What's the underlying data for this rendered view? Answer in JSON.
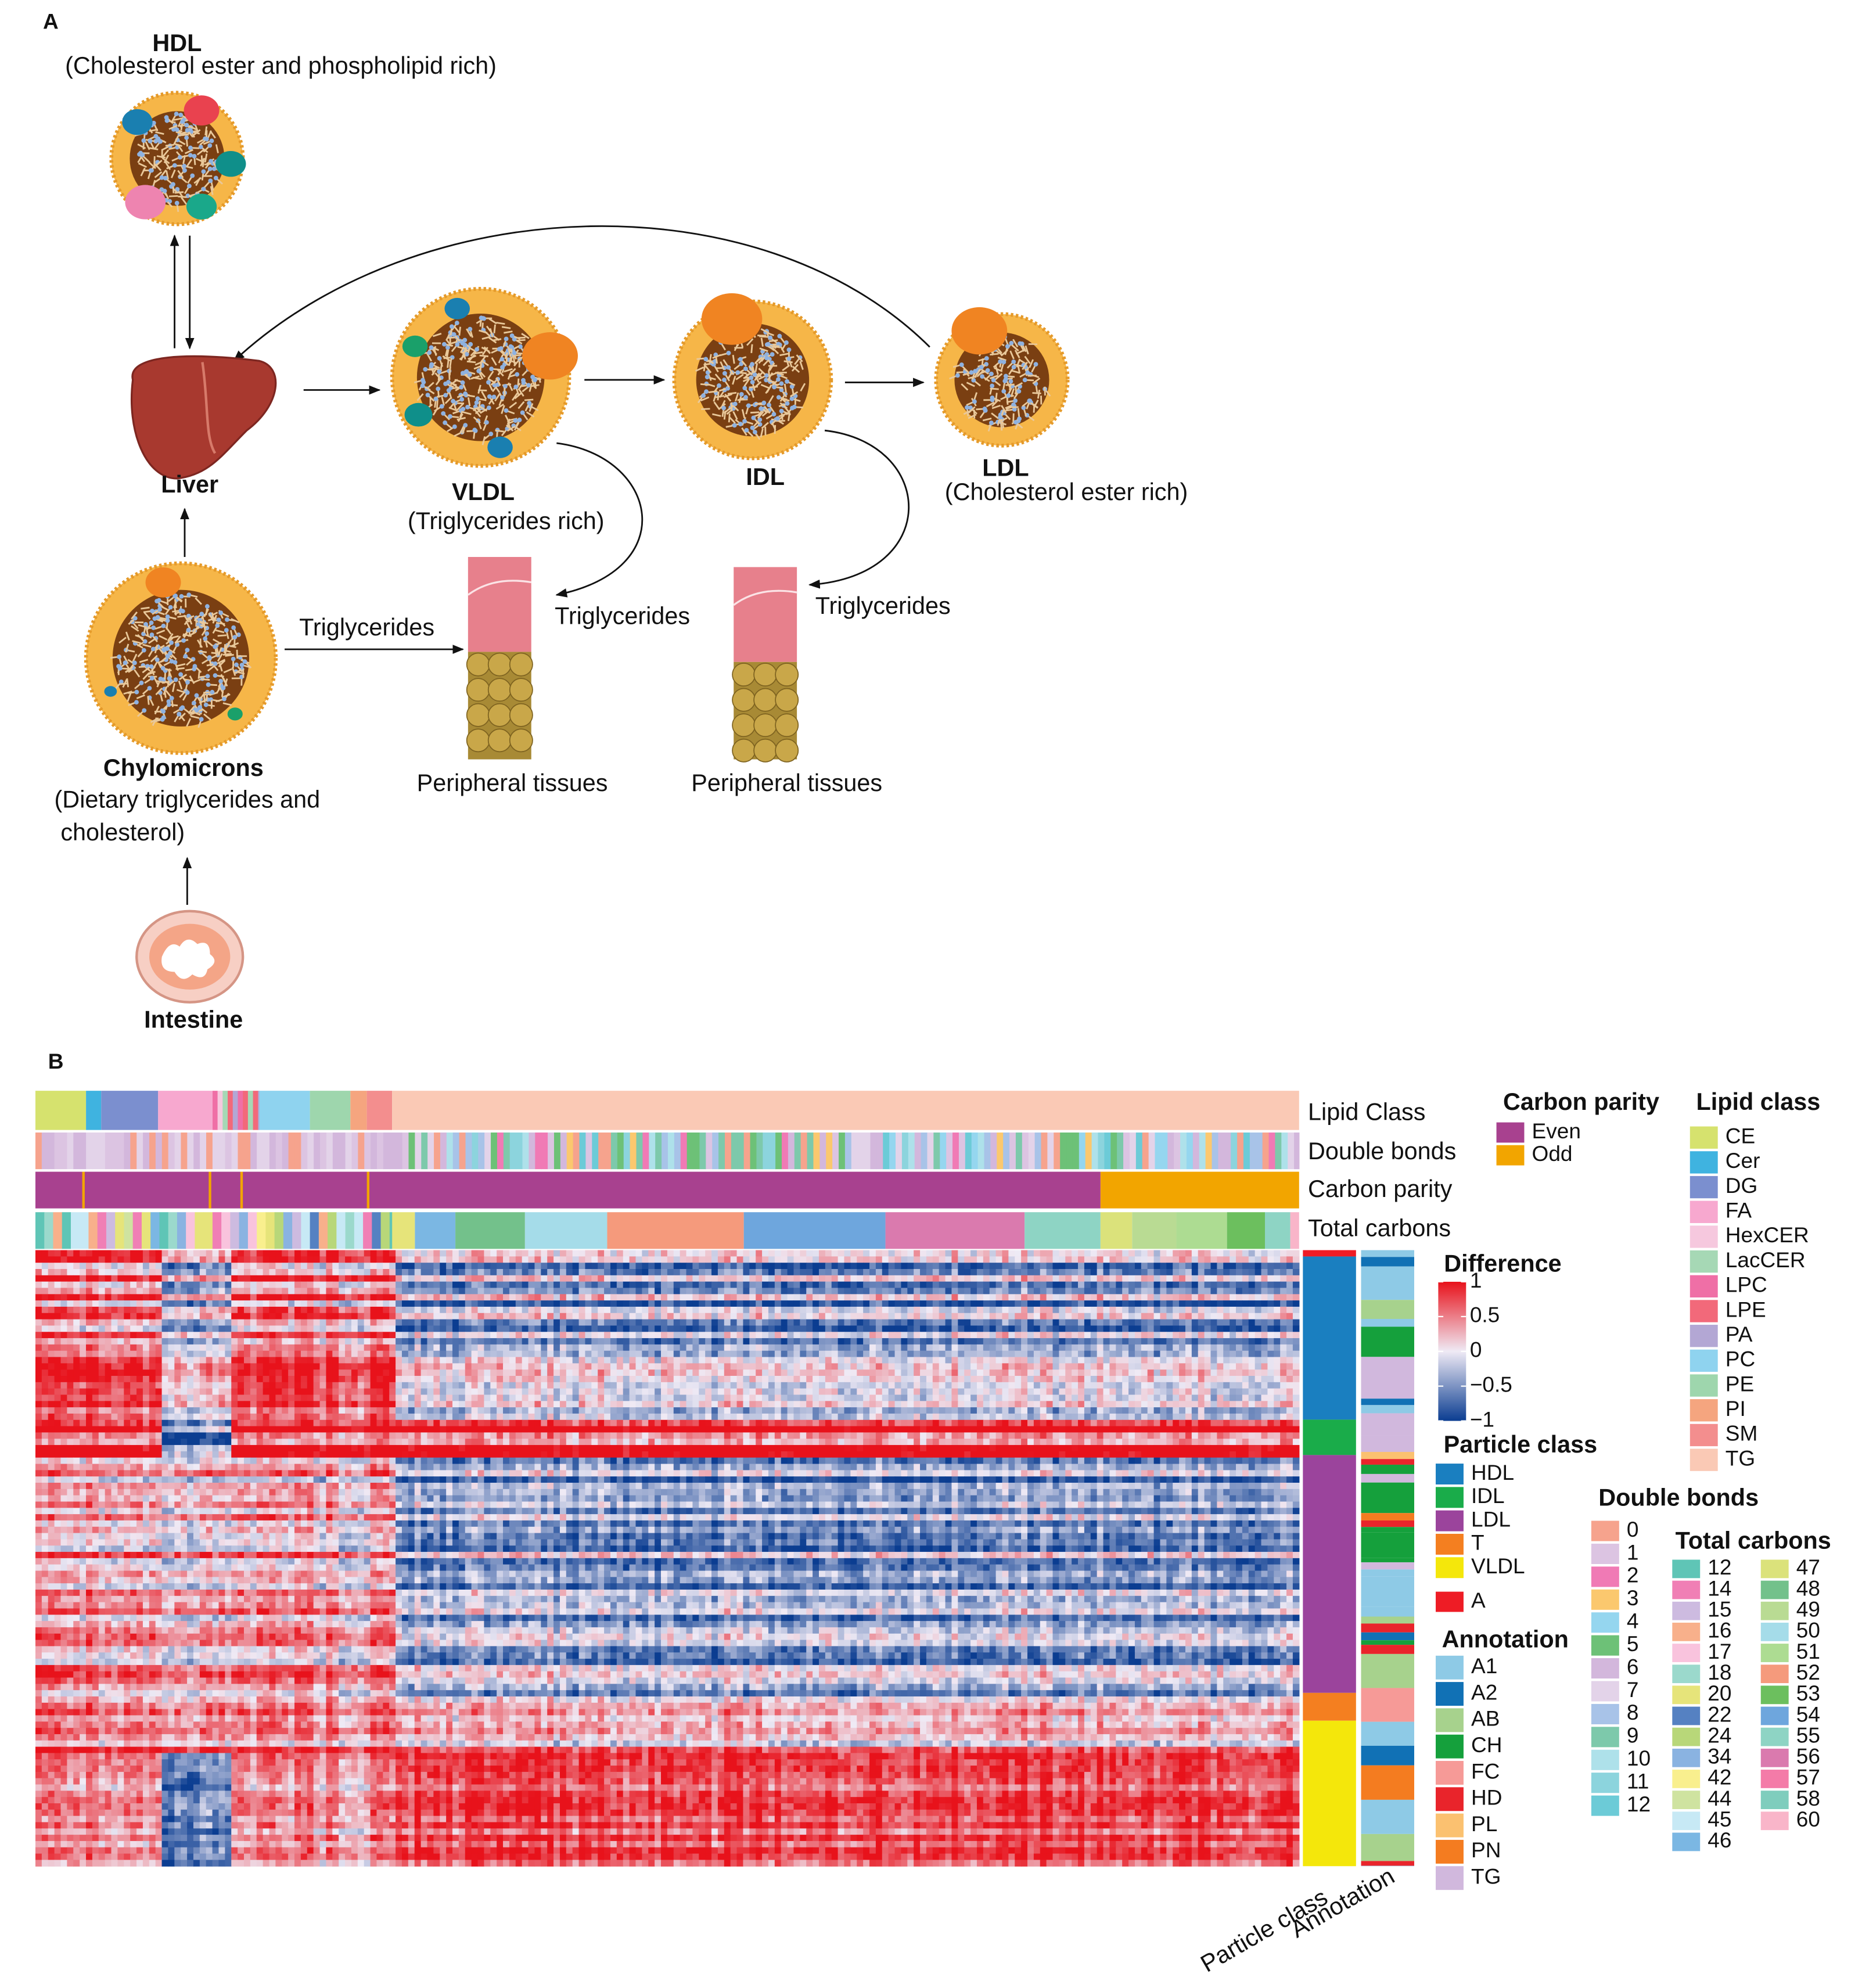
{
  "panel_a": {
    "label": "A",
    "hdl": {
      "name": "HDL",
      "description": "(Cholesterol ester and phospholipid rich)"
    },
    "liver": "Liver",
    "vldl": {
      "name": "VLDL",
      "description": "(Triglycerides rich)"
    },
    "idl": {
      "name": "IDL"
    },
    "ldl": {
      "name": "LDL",
      "description": "(Cholesterol ester rich)"
    },
    "chylomicrons": {
      "name": "Chylomicrons",
      "description_lines": [
        "(Dietary triglycerides and",
        "cholesterol)"
      ]
    },
    "intestine": "Intestine",
    "triglycerides_labels": [
      "Triglycerides",
      "Triglycerides",
      "Triglycerides"
    ],
    "peripheral_tissues": [
      "Peripheral tissues",
      "Peripheral tissues"
    ]
  },
  "panel_b": {
    "label": "B",
    "row_labels": [
      "Lipid Class",
      "Double bonds",
      "Carbon parity",
      "Total carbons"
    ],
    "column_labels": [
      "Particle class",
      "Annotation"
    ],
    "legends": {
      "carbon_parity": {
        "title": "Carbon parity",
        "items": [
          {
            "label": "Even",
            "color": "#a8418f"
          },
          {
            "label": "Odd",
            "color": "#f2a500"
          }
        ]
      },
      "lipid_class": {
        "title": "Lipid class",
        "items": [
          {
            "label": "CE",
            "color": "#d6e26e"
          },
          {
            "label": "Cer",
            "color": "#3fb3e0"
          },
          {
            "label": "DG",
            "color": "#7b8fcf"
          },
          {
            "label": "FA",
            "color": "#f7a8cf"
          },
          {
            "label": "HexCER",
            "color": "#f6c8de"
          },
          {
            "label": "LacCER",
            "color": "#a6d8b5"
          },
          {
            "label": "LPC",
            "color": "#ef6fa6"
          },
          {
            "label": "LPE",
            "color": "#f2697a"
          },
          {
            "label": "PA",
            "color": "#b3a7d4"
          },
          {
            "label": "PC",
            "color": "#8fd3ef"
          },
          {
            "label": "PE",
            "color": "#9ed6ad"
          },
          {
            "label": "PI",
            "color": "#f5a57f"
          },
          {
            "label": "SM",
            "color": "#f38e8e"
          },
          {
            "label": "TG",
            "color": "#fac9b5"
          }
        ]
      },
      "difference": {
        "title": "Difference",
        "range": [
          -1,
          1
        ],
        "colors": [
          "#0b3d91",
          "#efeaf5",
          "#e8121b"
        ],
        "ticks": [
          1,
          0.5,
          0,
          {
            "value": -0.5,
            "label": "−0.5"
          },
          {
            "value": -1,
            "label": "−1"
          }
        ]
      },
      "particle_class": {
        "title": "Particle class",
        "items": [
          {
            "label": "HDL",
            "color": "#1a7fc0"
          },
          {
            "label": "IDL",
            "color": "#1aac4a"
          },
          {
            "label": "LDL",
            "color": "#9b449c"
          },
          {
            "label": "T",
            "color": "#f47f20"
          },
          {
            "label": "VLDL",
            "color": "#f4e70b"
          },
          {
            "label": "A",
            "color": "#ee1c25"
          }
        ]
      },
      "annotation": {
        "title": "Annotation",
        "items": [
          {
            "label": "A1",
            "color": "#8ecae6"
          },
          {
            "label": "A2",
            "color": "#1171b5"
          },
          {
            "label": "AB",
            "color": "#a7d28d"
          },
          {
            "label": "CH",
            "color": "#15a03c"
          },
          {
            "label": "FC",
            "color": "#f69a97"
          },
          {
            "label": "HD",
            "color": "#e9242b"
          },
          {
            "label": "PL",
            "color": "#fbc170"
          },
          {
            "label": "PN",
            "color": "#f47c20"
          },
          {
            "label": "TG",
            "color": "#d1b8dd"
          }
        ]
      },
      "double_bonds": {
        "title": "Double bonds",
        "items": [
          {
            "label": 0,
            "color": "#f6a38d"
          },
          {
            "label": 1,
            "color": "#dcc4e2"
          },
          {
            "label": 2,
            "color": "#f07ab5"
          },
          {
            "label": 3,
            "color": "#fbc86e"
          },
          {
            "label": 4,
            "color": "#95d6ef"
          },
          {
            "label": 5,
            "color": "#6dc177"
          },
          {
            "label": 6,
            "color": "#d3b7dc"
          },
          {
            "label": 7,
            "color": "#e3d3e9"
          },
          {
            "label": 8,
            "color": "#a8c3e8"
          },
          {
            "label": 9,
            "color": "#7dc9ab"
          },
          {
            "label": 10,
            "color": "#aee1ea"
          },
          {
            "label": 11,
            "color": "#8cd4dd"
          },
          {
            "label": 12,
            "color": "#6ccbd7"
          }
        ]
      },
      "total_carbons": {
        "title": "Total carbons",
        "items": [
          {
            "label": 12,
            "color": "#5fc5b6"
          },
          {
            "label": 14,
            "color": "#f07fb5"
          },
          {
            "label": 15,
            "color": "#cdbbe0"
          },
          {
            "label": 16,
            "color": "#f8b08b"
          },
          {
            "label": 17,
            "color": "#f9c3dd"
          },
          {
            "label": 18,
            "color": "#9bd9cc"
          },
          {
            "label": 20,
            "color": "#e6e47a"
          },
          {
            "label": 22,
            "color": "#5581c2"
          },
          {
            "label": 24,
            "color": "#b8d779"
          },
          {
            "label": 34,
            "color": "#8ab3e1"
          },
          {
            "label": 42,
            "color": "#f9ef8e"
          },
          {
            "label": 44,
            "color": "#cfe3a0"
          },
          {
            "label": 45,
            "color": "#c7e9f5"
          },
          {
            "label": 46,
            "color": "#7bb7e3"
          },
          {
            "label": 47,
            "color": "#dbe27b"
          },
          {
            "label": 48,
            "color": "#73c18b"
          },
          {
            "label": 49,
            "color": "#b9db93"
          },
          {
            "label": 50,
            "color": "#a5dce9"
          },
          {
            "label": 51,
            "color": "#addc92"
          },
          {
            "label": 52,
            "color": "#f59a7c"
          },
          {
            "label": 53,
            "color": "#6cbf5e"
          },
          {
            "label": 54,
            "color": "#6ea6dd"
          },
          {
            "label": 55,
            "color": "#8ed4c4"
          },
          {
            "label": 56,
            "color": "#da7aae"
          },
          {
            "label": 57,
            "color": "#f47ba8"
          },
          {
            "label": 58,
            "color": "#7fcdbd"
          },
          {
            "label": 60,
            "color": "#f9b5c9"
          }
        ]
      }
    }
  }
}
